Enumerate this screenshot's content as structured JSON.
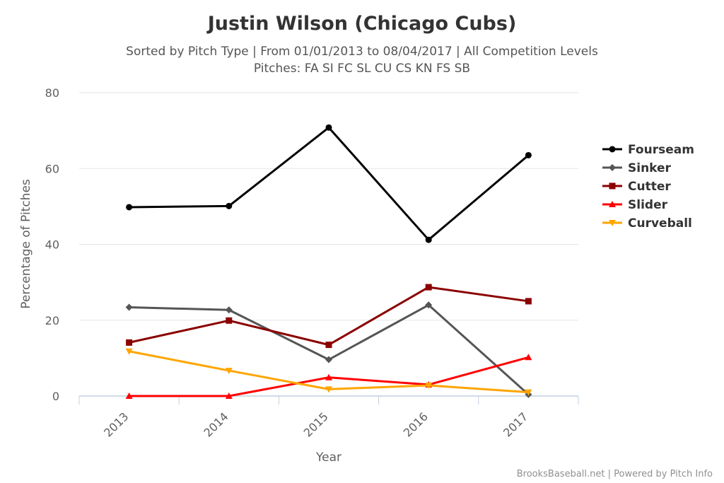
{
  "chart_data": {
    "type": "line",
    "title": "Justin Wilson (Chicago Cubs)",
    "subtitle_line1": "Sorted by Pitch Type | From 01/01/2013 to 08/04/2017 | All Competition Levels",
    "subtitle_line2": "Pitches: FA SI FC SL CU CS KN FS SB",
    "xlabel": "Year",
    "ylabel": "Percentage of Pitches",
    "categories": [
      "2013",
      "2014",
      "2015",
      "2016",
      "2017"
    ],
    "ylim": [
      0,
      80
    ],
    "yticks": [
      0,
      20,
      40,
      60,
      80
    ],
    "grid": true,
    "legend_position": "right",
    "credits": "BrooksBaseball.net | Powered by Pitch Info",
    "series": [
      {
        "name": "Fourseam",
        "color": "#000000",
        "marker": "circle",
        "values": [
          49.8,
          50.1,
          70.8,
          41.2,
          63.5
        ]
      },
      {
        "name": "Sinker",
        "color": "#555555",
        "marker": "diamond",
        "values": [
          23.4,
          22.7,
          9.6,
          24.0,
          0.4
        ]
      },
      {
        "name": "Cutter",
        "color": "#8b0000",
        "marker": "square",
        "values": [
          14.1,
          19.9,
          13.5,
          28.7,
          25.0
        ]
      },
      {
        "name": "Slider",
        "color": "#ff0000",
        "marker": "triangle",
        "values": [
          0.0,
          0.0,
          4.9,
          3.0,
          10.2
        ]
      },
      {
        "name": "Curveball",
        "color": "#ffa500",
        "marker": "triangle-down",
        "values": [
          11.8,
          6.7,
          1.8,
          2.8,
          1.0
        ]
      }
    ]
  }
}
